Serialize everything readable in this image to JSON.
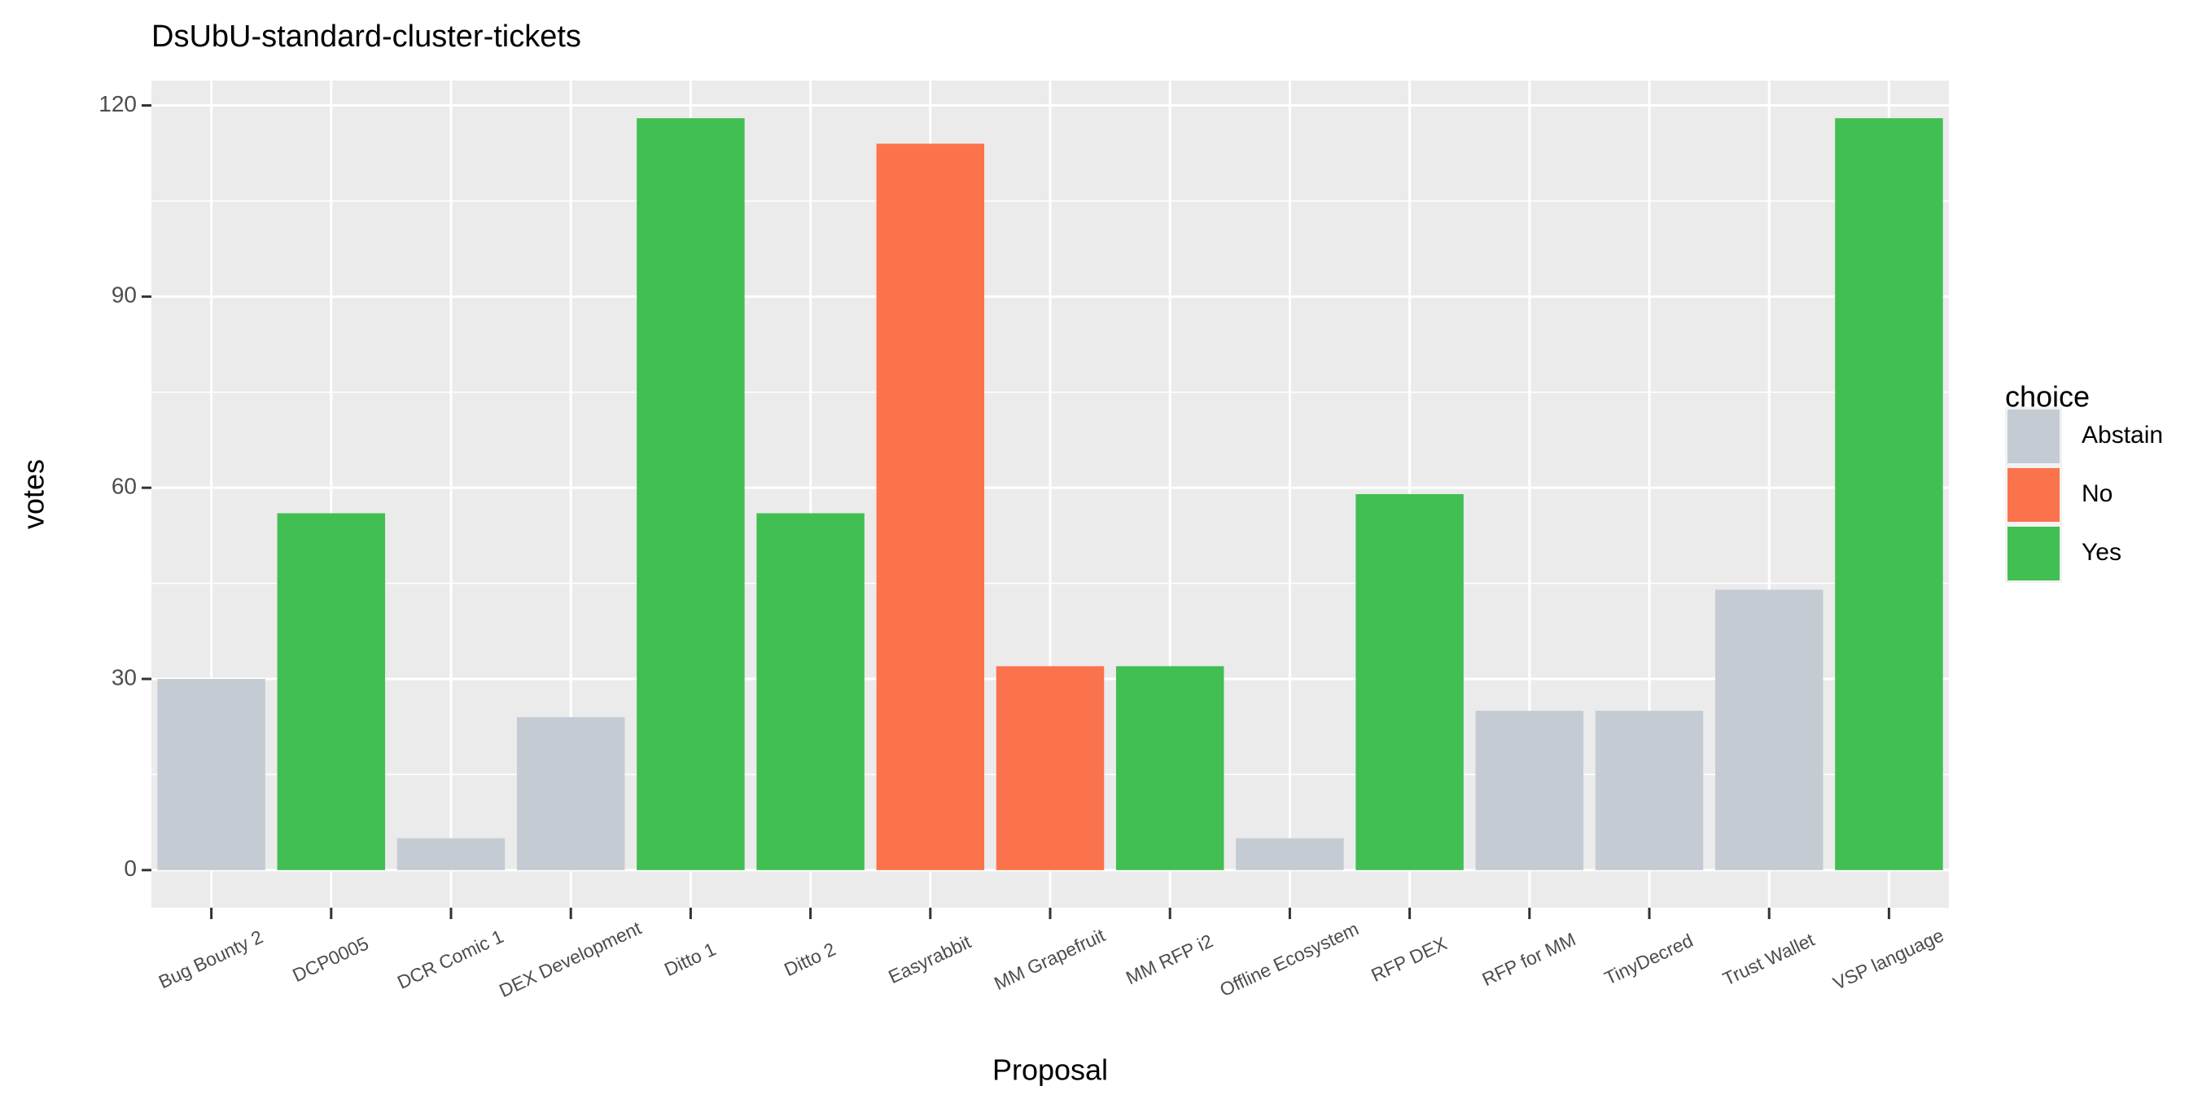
{
  "chart_data": {
    "type": "bar",
    "title": "DsUbU-standard-cluster-tickets",
    "x_label": "Proposal",
    "y_label": "votes",
    "legend_title": "choice",
    "categories": [
      "Bug Bounty 2",
      "DCP0005",
      "DCR Comic 1",
      "DEX Development",
      "Ditto 1",
      "Ditto 2",
      "Easyrabbit",
      "MM Grapefruit",
      "MM RFP i2",
      "Offline Ecosystem",
      "RFP DEX",
      "RFP for MM",
      "TinyDecred",
      "Trust Wallet",
      "VSP language"
    ],
    "series": [
      {
        "name": "Abstain",
        "color": "#c4cbd3",
        "values": [
          30,
          null,
          5,
          24,
          null,
          null,
          null,
          null,
          null,
          5,
          null,
          25,
          25,
          44,
          null
        ]
      },
      {
        "name": "No",
        "color": "#fb734c",
        "values": [
          null,
          null,
          null,
          null,
          null,
          null,
          114,
          32,
          null,
          null,
          null,
          null,
          null,
          null,
          null
        ]
      },
      {
        "name": "Yes",
        "color": "#41bf52",
        "values": [
          null,
          56,
          null,
          null,
          118,
          56,
          null,
          null,
          32,
          null,
          59,
          null,
          null,
          null,
          118
        ]
      }
    ],
    "ylim": [
      -5.9,
      123.9
    ],
    "yticks": [
      0,
      30,
      60,
      90,
      120
    ],
    "grid": true,
    "legend": "right"
  }
}
